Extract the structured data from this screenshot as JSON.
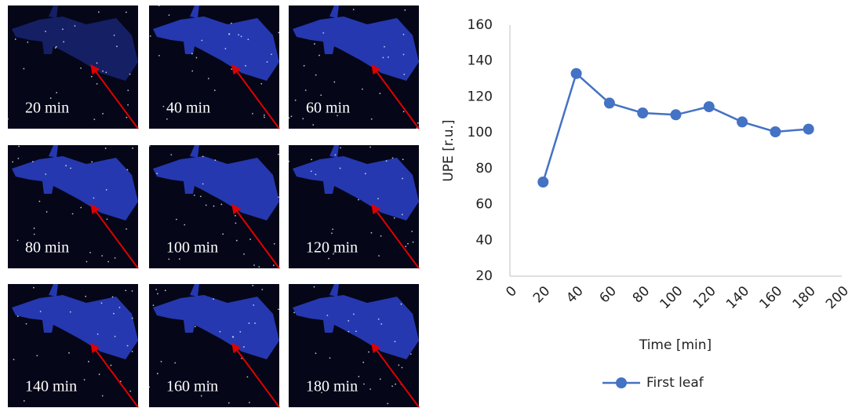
{
  "panels": [
    {
      "label": "20 min"
    },
    {
      "label": "40 min"
    },
    {
      "label": "60 min"
    },
    {
      "label": "80 min"
    },
    {
      "label": "100 min"
    },
    {
      "label": "120 min"
    },
    {
      "label": "140 min"
    },
    {
      "label": "160 min"
    },
    {
      "label": "180 min"
    }
  ],
  "chart_data": {
    "type": "line",
    "x_label": "Time [min]",
    "y_label": "UPE [r.u.]",
    "x": [
      20,
      40,
      60,
      80,
      100,
      120,
      140,
      160,
      180
    ],
    "series": [
      {
        "name": "First leaf",
        "color": "#4472c4",
        "values": [
          72.5,
          133,
          116.5,
          111,
          110,
          114.5,
          106,
          100.5,
          102
        ]
      }
    ],
    "xlim": [
      0,
      200
    ],
    "xticks": [
      0,
      20,
      40,
      60,
      80,
      100,
      120,
      140,
      160,
      180,
      200
    ],
    "ylim": [
      20,
      160
    ],
    "yticks": [
      20,
      40,
      60,
      80,
      100,
      120,
      140,
      160
    ],
    "grid": false,
    "legend": "bottom"
  }
}
